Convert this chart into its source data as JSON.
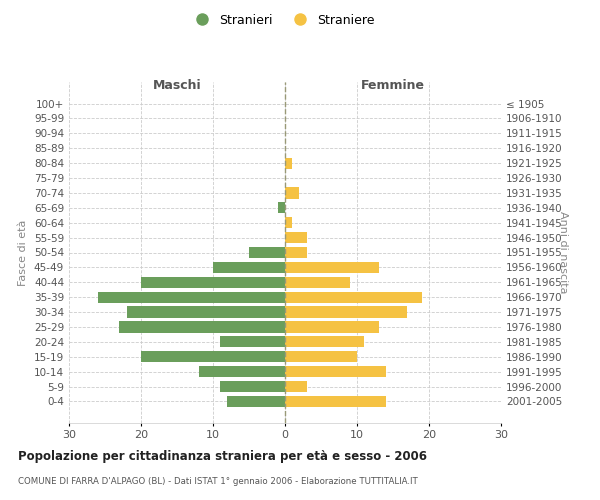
{
  "age_groups": [
    "0-4",
    "5-9",
    "10-14",
    "15-19",
    "20-24",
    "25-29",
    "30-34",
    "35-39",
    "40-44",
    "45-49",
    "50-54",
    "55-59",
    "60-64",
    "65-69",
    "70-74",
    "75-79",
    "80-84",
    "85-89",
    "90-94",
    "95-99",
    "100+"
  ],
  "birth_years": [
    "2001-2005",
    "1996-2000",
    "1991-1995",
    "1986-1990",
    "1981-1985",
    "1976-1980",
    "1971-1975",
    "1966-1970",
    "1961-1965",
    "1956-1960",
    "1951-1955",
    "1946-1950",
    "1941-1945",
    "1936-1940",
    "1931-1935",
    "1926-1930",
    "1921-1925",
    "1916-1920",
    "1911-1915",
    "1906-1910",
    "≤ 1905"
  ],
  "maschi": [
    8,
    9,
    12,
    20,
    9,
    23,
    22,
    26,
    20,
    10,
    5,
    0,
    0,
    1,
    0,
    0,
    0,
    0,
    0,
    0,
    0
  ],
  "femmine": [
    14,
    3,
    14,
    10,
    11,
    13,
    17,
    19,
    9,
    13,
    3,
    3,
    1,
    0,
    2,
    0,
    1,
    0,
    0,
    0,
    0
  ],
  "male_color": "#6a9e5b",
  "female_color": "#f5c243",
  "title": "Popolazione per cittadinanza straniera per età e sesso - 2006",
  "subtitle": "COMUNE DI FARRA D'ALPAGO (BL) - Dati ISTAT 1° gennaio 2006 - Elaborazione TUTTITALIA.IT",
  "legend_maschi": "Stranieri",
  "legend_femmine": "Straniere",
  "xlabel_left": "Maschi",
  "xlabel_right": "Femmine",
  "ylabel_left": "Fasce di età",
  "ylabel_right": "Anni di nascita",
  "xlim": 30,
  "background_color": "#ffffff",
  "grid_color": "#cccccc"
}
